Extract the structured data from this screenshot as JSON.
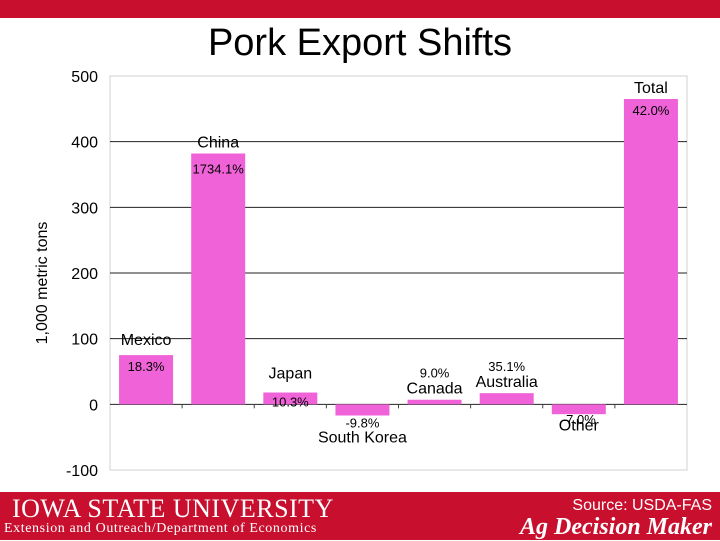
{
  "slide": {
    "title": "Pork Export Shifts",
    "source": "Source: USDA-FAS",
    "university": "IOWA STATE UNIVERSITY",
    "department": "Extension and Outreach/Department of Economics",
    "brand": "Ag Decision Maker"
  },
  "colors": {
    "bar": "#f063d8",
    "accent": "#c8102e"
  },
  "chart_data": {
    "type": "bar",
    "title": "Pork Export Shifts",
    "ylabel": "1,000 metric tons",
    "ylim": [
      -100,
      500
    ],
    "yticks": [
      500,
      400,
      300,
      200,
      100,
      0,
      -100
    ],
    "categories": [
      "Mexico",
      "China",
      "Japan",
      "South Korea",
      "Canada",
      "Australia",
      "Other",
      "Total"
    ],
    "values": [
      75,
      382,
      18,
      -17,
      7,
      17,
      -15,
      465
    ],
    "labels": [
      "18.3%",
      "1734.1%",
      "10.3%",
      "-9.8%",
      "9.0%",
      "35.1%",
      "-7.0%",
      "42.0%"
    ],
    "grid": true
  }
}
